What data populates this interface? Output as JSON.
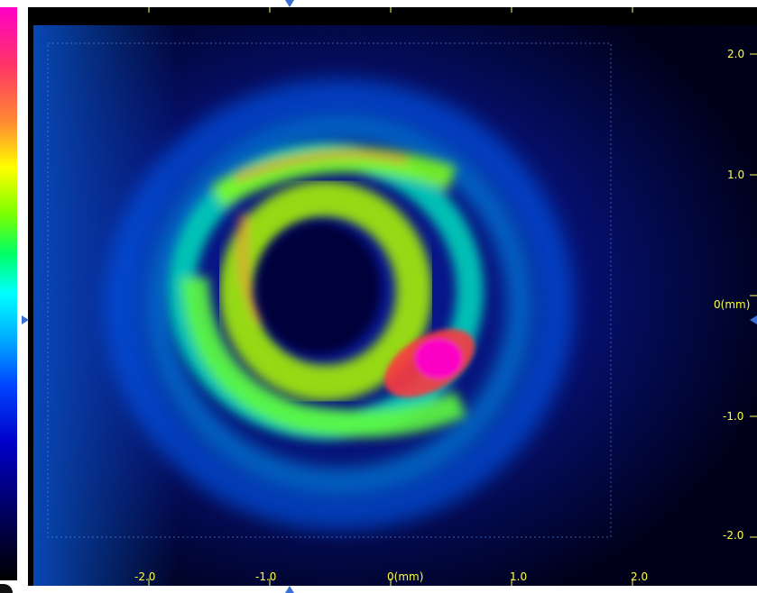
{
  "viewer": {
    "x_ticks": [
      "-2.0",
      "-1.0",
      "0(mm)",
      "1.0",
      "2.0"
    ],
    "y_ticks": [
      "2.0",
      "1.0",
      "0(mm)",
      "-1.0",
      "-2.0"
    ],
    "colors": {
      "label": "#ffff40",
      "marker": "#3a6fd8",
      "background": "#000000"
    }
  }
}
